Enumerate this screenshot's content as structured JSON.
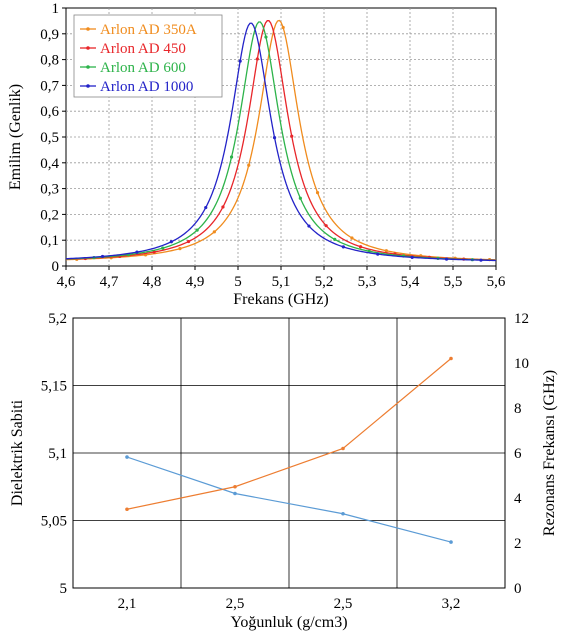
{
  "chart_data": [
    {
      "type": "line",
      "xlabel": "Frekans (GHz)",
      "ylabel": "Emilim (Genlik)",
      "xlim": [
        4.6,
        5.6
      ],
      "ylim": [
        0,
        1
      ],
      "x_ticks": [
        "4,6",
        "4,7",
        "4,8",
        "4,9",
        "5",
        "5,1",
        "5,2",
        "5,3",
        "5,4",
        "5,5",
        "5,6"
      ],
      "y_ticks": [
        "0",
        "0,1",
        "0,2",
        "0,3",
        "0,4",
        "0,5",
        "0,6",
        "0,7",
        "0,8",
        "0,9",
        "1"
      ],
      "grid": true,
      "legend_position": "top-left",
      "series": [
        {
          "name": "Arlon AD 350A",
          "color": "#f08c1e",
          "peak_x": 5.095,
          "peak_y": 0.94,
          "hwhm": 0.0575
        },
        {
          "name": "Arlon AD 450",
          "color": "#e8262a",
          "peak_x": 5.07,
          "peak_y": 0.94,
          "hwhm": 0.0575
        },
        {
          "name": "Arlon AD 600",
          "color": "#2db34a",
          "peak_x": 5.05,
          "peak_y": 0.935,
          "hwhm": 0.0575
        },
        {
          "name": "Arlon AD 1000",
          "color": "#2323c8",
          "peak_x": 5.03,
          "peak_y": 0.93,
          "hwhm": 0.0575
        }
      ]
    },
    {
      "type": "line",
      "xlabel": "Yoğunluk (g/cm3)",
      "ylabel": "Dielektrik Sabiti",
      "y2label": "Rezonans Frekansı (GHz)",
      "categories": [
        "2,1",
        "2,5",
        "2,5",
        "3,2"
      ],
      "ylim": [
        5,
        5.2
      ],
      "y_ticks": [
        "5",
        "5,05",
        "5,1",
        "5,15",
        "5,2"
      ],
      "y2lim": [
        0,
        12
      ],
      "y2_ticks": [
        "0",
        "2",
        "4",
        "6",
        "8",
        "10",
        "12"
      ],
      "grid": true,
      "series": [
        {
          "axis": "left",
          "color": "#5b9bd5",
          "values": [
            5.097,
            5.07,
            5.055,
            5.034
          ]
        },
        {
          "axis": "right",
          "color": "#ed7d31",
          "values": [
            3.5,
            4.5,
            6.2,
            10.2
          ]
        }
      ]
    }
  ]
}
